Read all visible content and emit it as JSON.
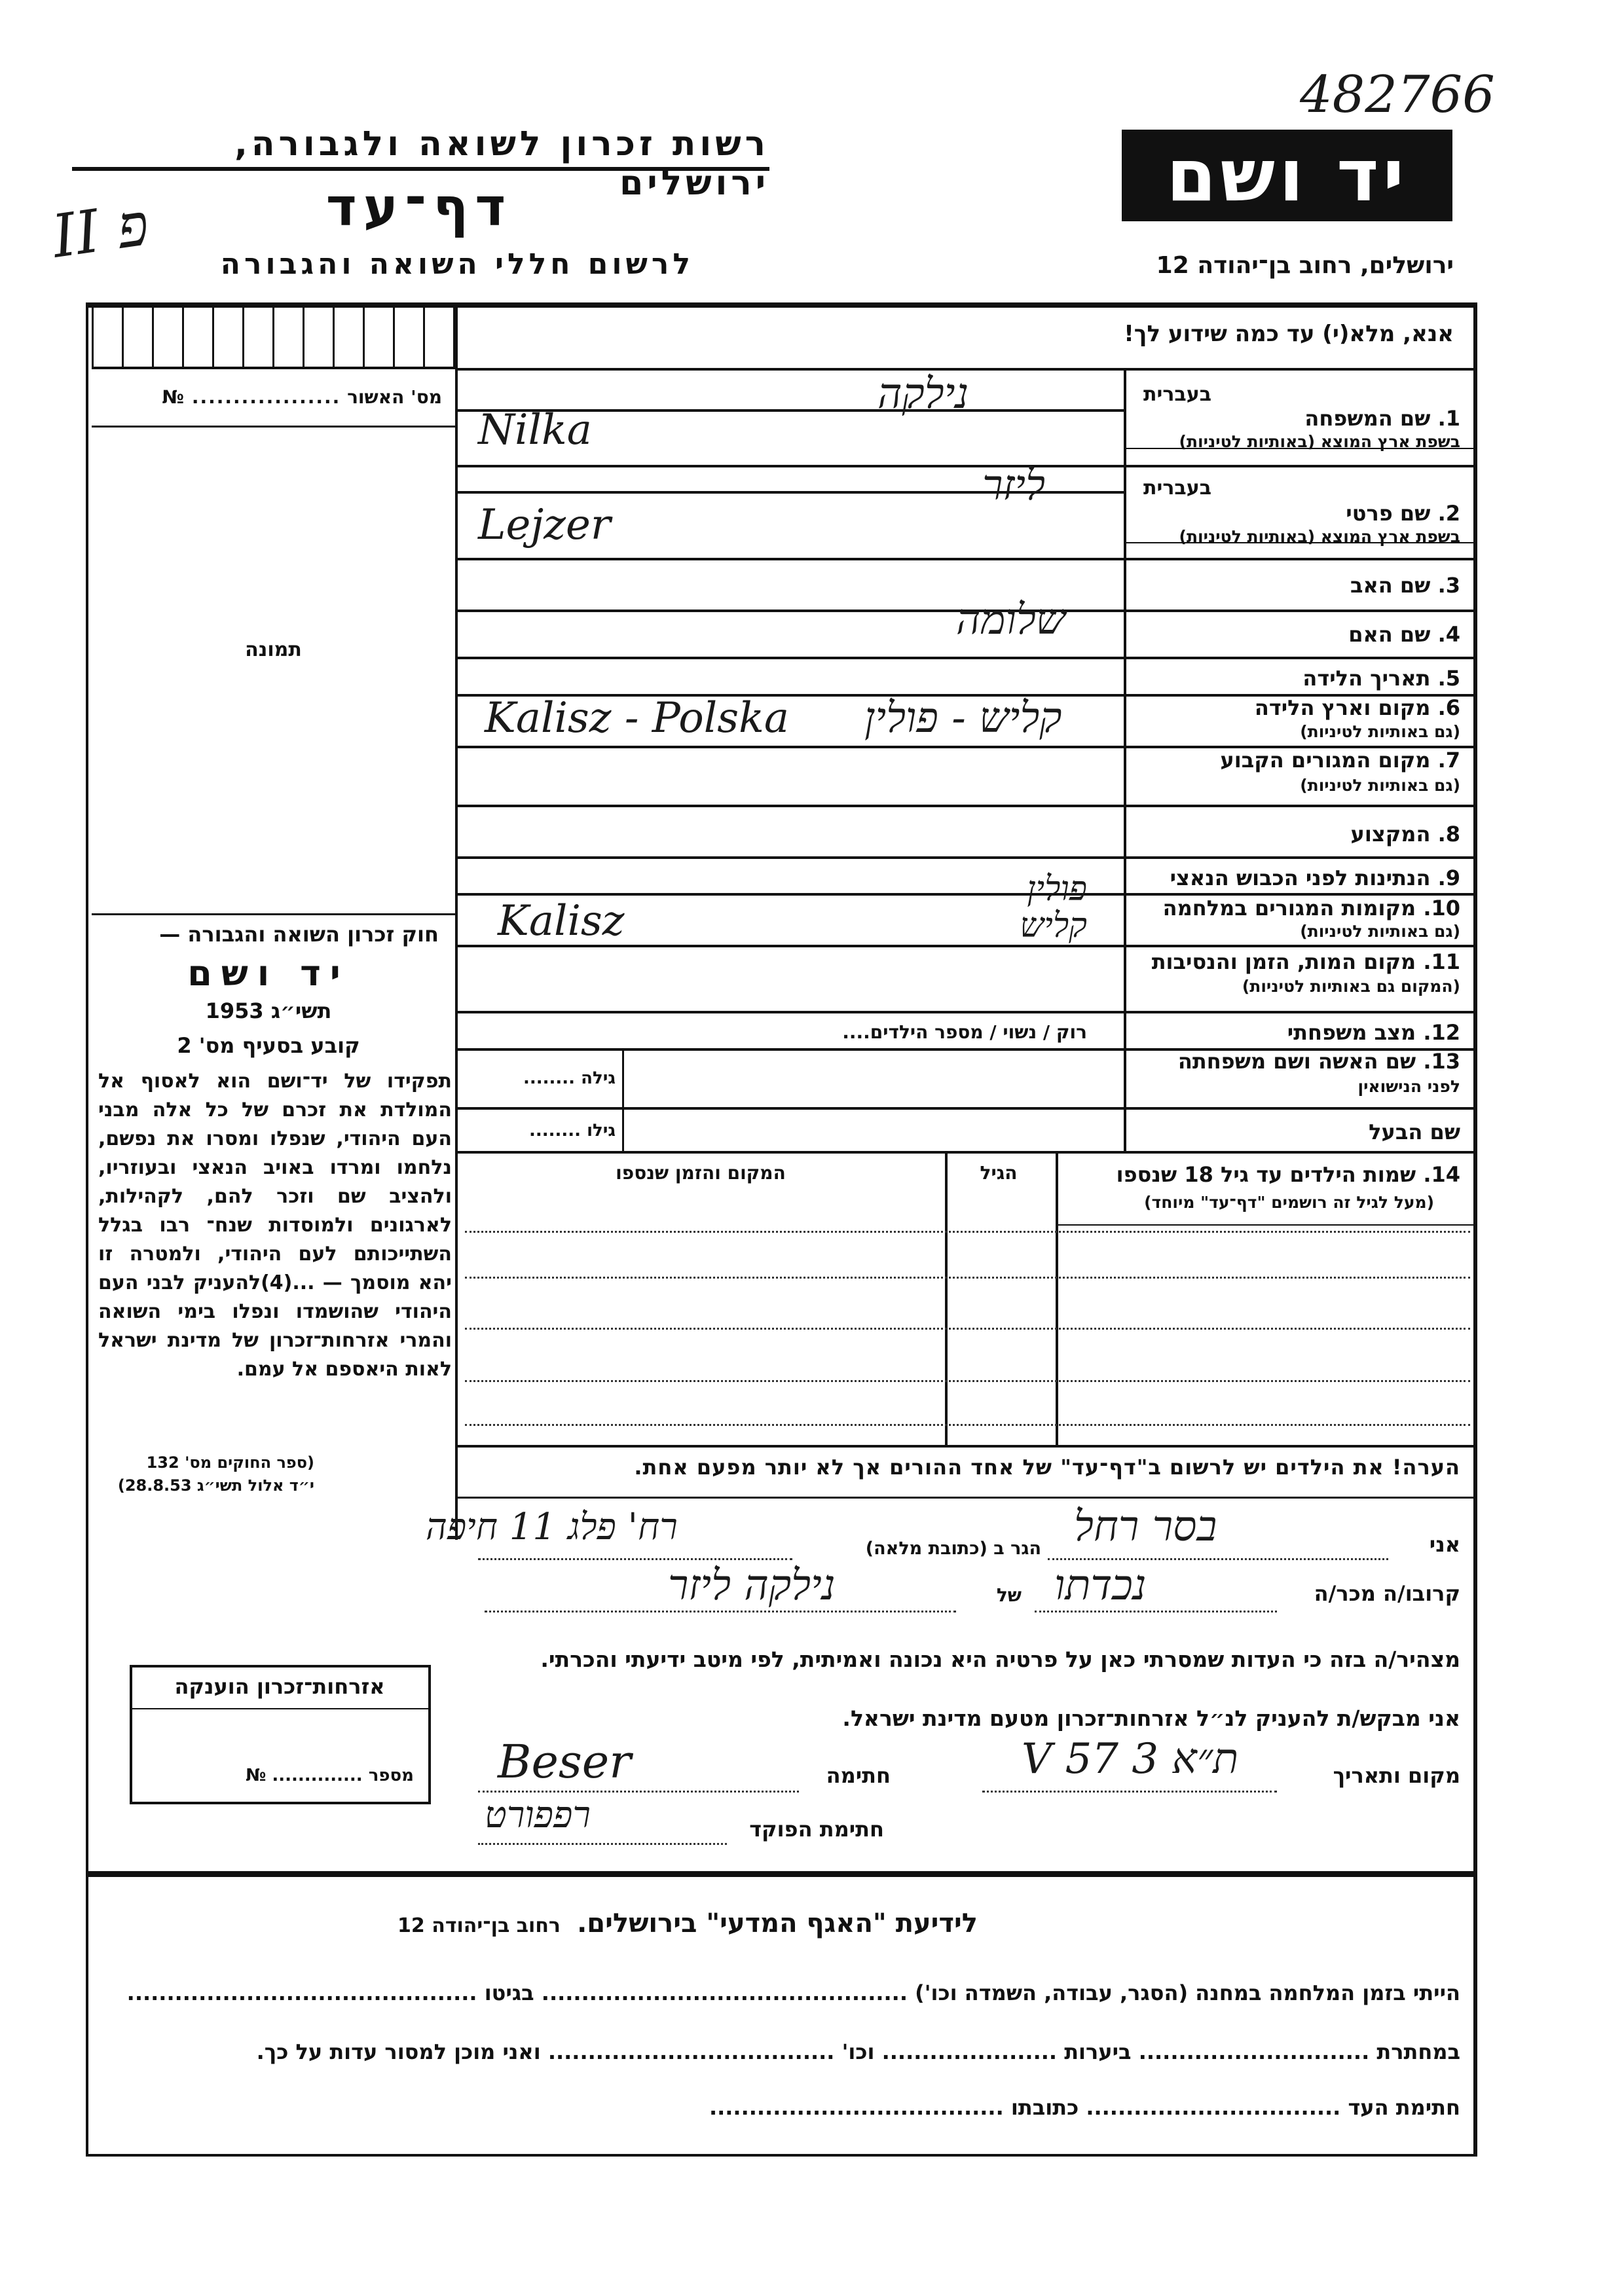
{
  "header": {
    "archive_number": "482766",
    "institution_line": "רשות זכרון לשואה ולגבורה, ירושלים",
    "logo_text": "יד ושם",
    "form_title": "דף־עד",
    "form_subtitle": "לרשום חללי השואה והגבורה",
    "address": "ירושלים, רחוב בן־יהודה 12",
    "margin_mark": "II פ"
  },
  "instruction": "אנא, מלא(י) עד כמה שידוע לך!",
  "left_column": {
    "approval_no_label": "מס' האשור",
    "no_sign": "№",
    "photo_label": "תמונה",
    "law_heading": "חוק זכרון השואה והגבורה —",
    "law_name": "יד ושם",
    "law_year": "תשי״ג 1953",
    "law_section": "קובע בסעיף מס' 2",
    "law_text": "תפקידו של יד־ושם הוא לאסוף אל המולדת את זכרם של כל אלה מבני העם היהודי, שנפלו ומסרו את נפשם, נלחמו ומרדו באויב הנאצי ובעוזריו, ולהציב שם וזכר להם, לקהילות, לארגונים ולמוסדות שנח־ רבו בגלל השתייכותם לעם היהודי, ולמטרה זו יהא מוסמך — ...(4)להעניק לבני העם היהודי שהושמדו ונפלו בימי השואה והמרי אזרחות־זכרון של מדינת ישראל לאות היאספם אל עמם.",
    "law_ref_1": "(ספר החוקים מס' 132",
    "law_ref_2": "י״ד אלול תשי״ג 28.8.53)"
  },
  "fields": [
    {
      "label": "1. שם המשפחה",
      "hebrew_tag": "בעברית",
      "note": "בשפת ארץ המוצא (באותיות לטיניות)",
      "value_hebrew": "נילקה",
      "value_latin": "Nilka"
    },
    {
      "label": "2. שם פרטי",
      "hebrew_tag": "בעברית",
      "note": "בשפת ארץ המוצא (באותיות לטיניות)",
      "value_hebrew": "ליזר",
      "value_latin": "Lejzer"
    },
    {
      "label": "3. שם האב",
      "value_hebrew": ""
    },
    {
      "label": "4. שם האם",
      "value_hebrew": "שלומה"
    },
    {
      "label": "5. תאריך הלידה",
      "value_hebrew": ""
    },
    {
      "label": "6. מקום וארץ הלידה",
      "note": "(גם באותיות לטיניות)",
      "value_hebrew": "קליש - פולין",
      "value_latin": "Kalisz - Polska"
    },
    {
      "label": "7. מקום המגורים הקבוע",
      "note": "(גם באותיות לטיניות)",
      "value_hebrew": ""
    },
    {
      "label": "8. המקצוע",
      "value_hebrew": ""
    },
    {
      "label": "9. הנתינות לפני הכבוש הנאצי",
      "value_hebrew": ""
    },
    {
      "label": "10. מקומות המגורים במלחמה",
      "note": "(גם באותיות לטיניות)",
      "value_hebrew": "פולין קליש",
      "value_latin": "Kalisz"
    },
    {
      "label": "11. מקום המות, הזמן והנסיבות",
      "note": "(המקום גם באותיות לטיניות)",
      "value_hebrew": ""
    },
    {
      "label": "12. מצב משפחתי",
      "marital_options": "רוק / נשוי / מספר הילדים"
    },
    {
      "label": "13. שם האשה ושם משפחתה",
      "note": "לפני הנישואין",
      "age_label_f": "גילה"
    },
    {
      "label": "שם הבעל",
      "age_label_m": "גילו"
    }
  ],
  "children": {
    "label": "14. שמות הילדים עד גיל 18 שנספו",
    "note": "(מעל לגיל זה רושמים \"דף־עד\" מיוחד)",
    "age_header": "הגיל",
    "place_header": "המקום והזמן שנספו"
  },
  "remark": "הערה! את הילדים יש לרשום ב\"דף־עד\" של אחד ההורים אך לא יותר מפעם אחת.",
  "declaration": {
    "i_label": "אני",
    "witness_name": "בסר רחל",
    "address_label": "הגר ב (כתובת מלאה)",
    "address_value": "רח' פלג 11 חיפה",
    "relation_label": "קרובו/ה מכר/ה",
    "relation_value": "נכדתו",
    "of_label": "של",
    "of_value": "נילקה ליזר",
    "statement": "מצהיר/ה בזה כי העדות שמסרתי כאן על פרטיה היא נכונה ואמיתית, לפי מיטב ידיעתי והכרתי.",
    "request": "אני מבקש/ת להעניק לנ״ל אזרחות־זכרון מטעם מדינת ישראל.",
    "place_date_label": "מקום ותאריך",
    "place_date_value": "ת״א 3 V 57",
    "signature_label": "חתימה",
    "signature_value": "Beser",
    "officer_label": "חתימת הפוקד",
    "officer_value": "רפפורט"
  },
  "granted_box": {
    "title": "אזרחות־זכרון הוענקה",
    "number_label": "מספר",
    "no_sign": "№"
  },
  "footer": {
    "heading": "לידיעת \"האגף המדעי\" בירושלים.",
    "address": "רחוב בן־יהודה 12",
    "line1_a": "הייתי בזמן המלחמה במחנה (הסגר, עבודה, השמדה וכו')",
    "line1_b": "בגיטו",
    "line2_a": "במחתרת",
    "line2_b": "ביערות",
    "line2_c": "וכו'",
    "line2_d": "ואני מוכן למסור עדות על כך.",
    "line3_a": "חתימת העד",
    "line3_b": "כתובתו"
  }
}
